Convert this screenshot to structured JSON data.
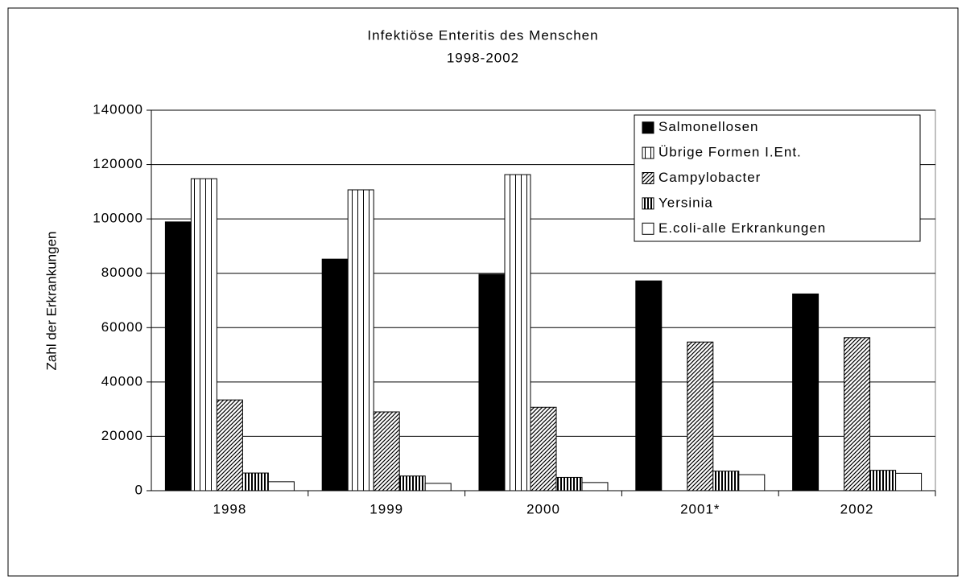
{
  "chart_data": {
    "type": "bar",
    "title": "Infektiöse Enteritis des Menschen",
    "subtitle": "1998-2002",
    "y_label": "Zahl der Erkrankungen",
    "categories": [
      "1998",
      "1999",
      "2000",
      "2001*",
      "2002"
    ],
    "series": [
      {
        "name": "Salmonellosen",
        "color": "#000000",
        "pattern": "solid",
        "values": [
          98900,
          85200,
          79600,
          77200,
          72400
        ]
      },
      {
        "name": "Übrige Formen I.Ent.",
        "color": "#000000",
        "pattern": "vertical",
        "values": [
          114800,
          110700,
          116300,
          null,
          null
        ]
      },
      {
        "name": "Campylobacter",
        "color": "#000000",
        "pattern": "diagonal",
        "values": [
          33400,
          29000,
          30700,
          54700,
          56300
        ]
      },
      {
        "name": "Yersinia",
        "color": "#000000",
        "pattern": "dense-vertical",
        "values": [
          6500,
          5400,
          4900,
          7200,
          7500
        ]
      },
      {
        "name": "E.coli-alle Erkrankungen",
        "color": "#ffffff",
        "pattern": "solid",
        "values": [
          3300,
          2700,
          3000,
          5900,
          6400
        ]
      }
    ],
    "ylim": [
      0,
      140000
    ],
    "yticks": [
      0,
      20000,
      40000,
      60000,
      80000,
      100000,
      120000,
      140000
    ],
    "grid": true,
    "legend": "top-right"
  }
}
